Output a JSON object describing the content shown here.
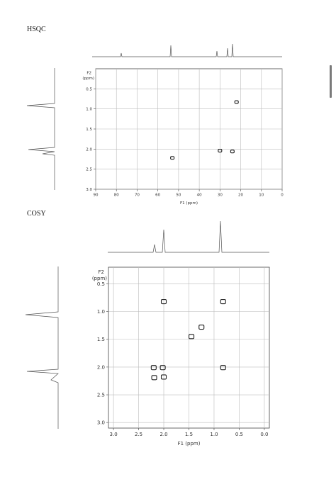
{
  "hsqc": {
    "title": "HSQC",
    "f2_label": "F2",
    "f2_unit": "(ppm)",
    "f1_axis_label": "F1 (ppm)",
    "x_ticks": [
      "90",
      "80",
      "70",
      "60",
      "50",
      "40",
      "30",
      "20",
      "10",
      "0"
    ],
    "y_ticks": [
      "0.5",
      "1.0",
      "1.5",
      "2.0",
      "2.5",
      "3.0"
    ]
  },
  "cosy": {
    "title": "COSY",
    "f2_label": "F2",
    "f2_unit": "(ppm)",
    "f1_axis_label": "F1 (ppm)",
    "x_ticks": [
      "3.0",
      "2.5",
      "2.0",
      "1.5",
      "1.0",
      "0.5",
      "0.0"
    ],
    "y_ticks": [
      "0.5",
      "1.0",
      "1.5",
      "2.0",
      "2.5",
      "3.0"
    ]
  },
  "chart_data": [
    {
      "type": "scatter",
      "title": "HSQC",
      "xlabel": "F1 (ppm)",
      "ylabel": "F2 (ppm)",
      "xlim": [
        90,
        0
      ],
      "ylim": [
        3.0,
        0.0
      ],
      "grid": true,
      "cross_peaks": [
        {
          "f1": 22,
          "f2": 0.83
        },
        {
          "f1": 30,
          "f2": 2.04
        },
        {
          "f1": 24,
          "f2": 2.06
        },
        {
          "f1": 53,
          "f2": 2.22
        }
      ]
    },
    {
      "type": "scatter",
      "title": "COSY",
      "xlabel": "F1 (ppm)",
      "ylabel": "F2 (ppm)",
      "xlim": [
        3.1,
        -0.1
      ],
      "ylim": [
        3.1,
        0.2
      ],
      "grid": true,
      "cross_peaks": [
        {
          "f1": 2.0,
          "f2": 0.82
        },
        {
          "f1": 0.82,
          "f2": 0.82
        },
        {
          "f1": 1.25,
          "f2": 1.28
        },
        {
          "f1": 1.45,
          "f2": 1.45
        },
        {
          "f1": 2.02,
          "f2": 2.01
        },
        {
          "f1": 2.2,
          "f2": 2.01
        },
        {
          "f1": 0.82,
          "f2": 2.01
        },
        {
          "f1": 2.19,
          "f2": 2.19
        },
        {
          "f1": 2.0,
          "f2": 2.18
        }
      ]
    }
  ]
}
